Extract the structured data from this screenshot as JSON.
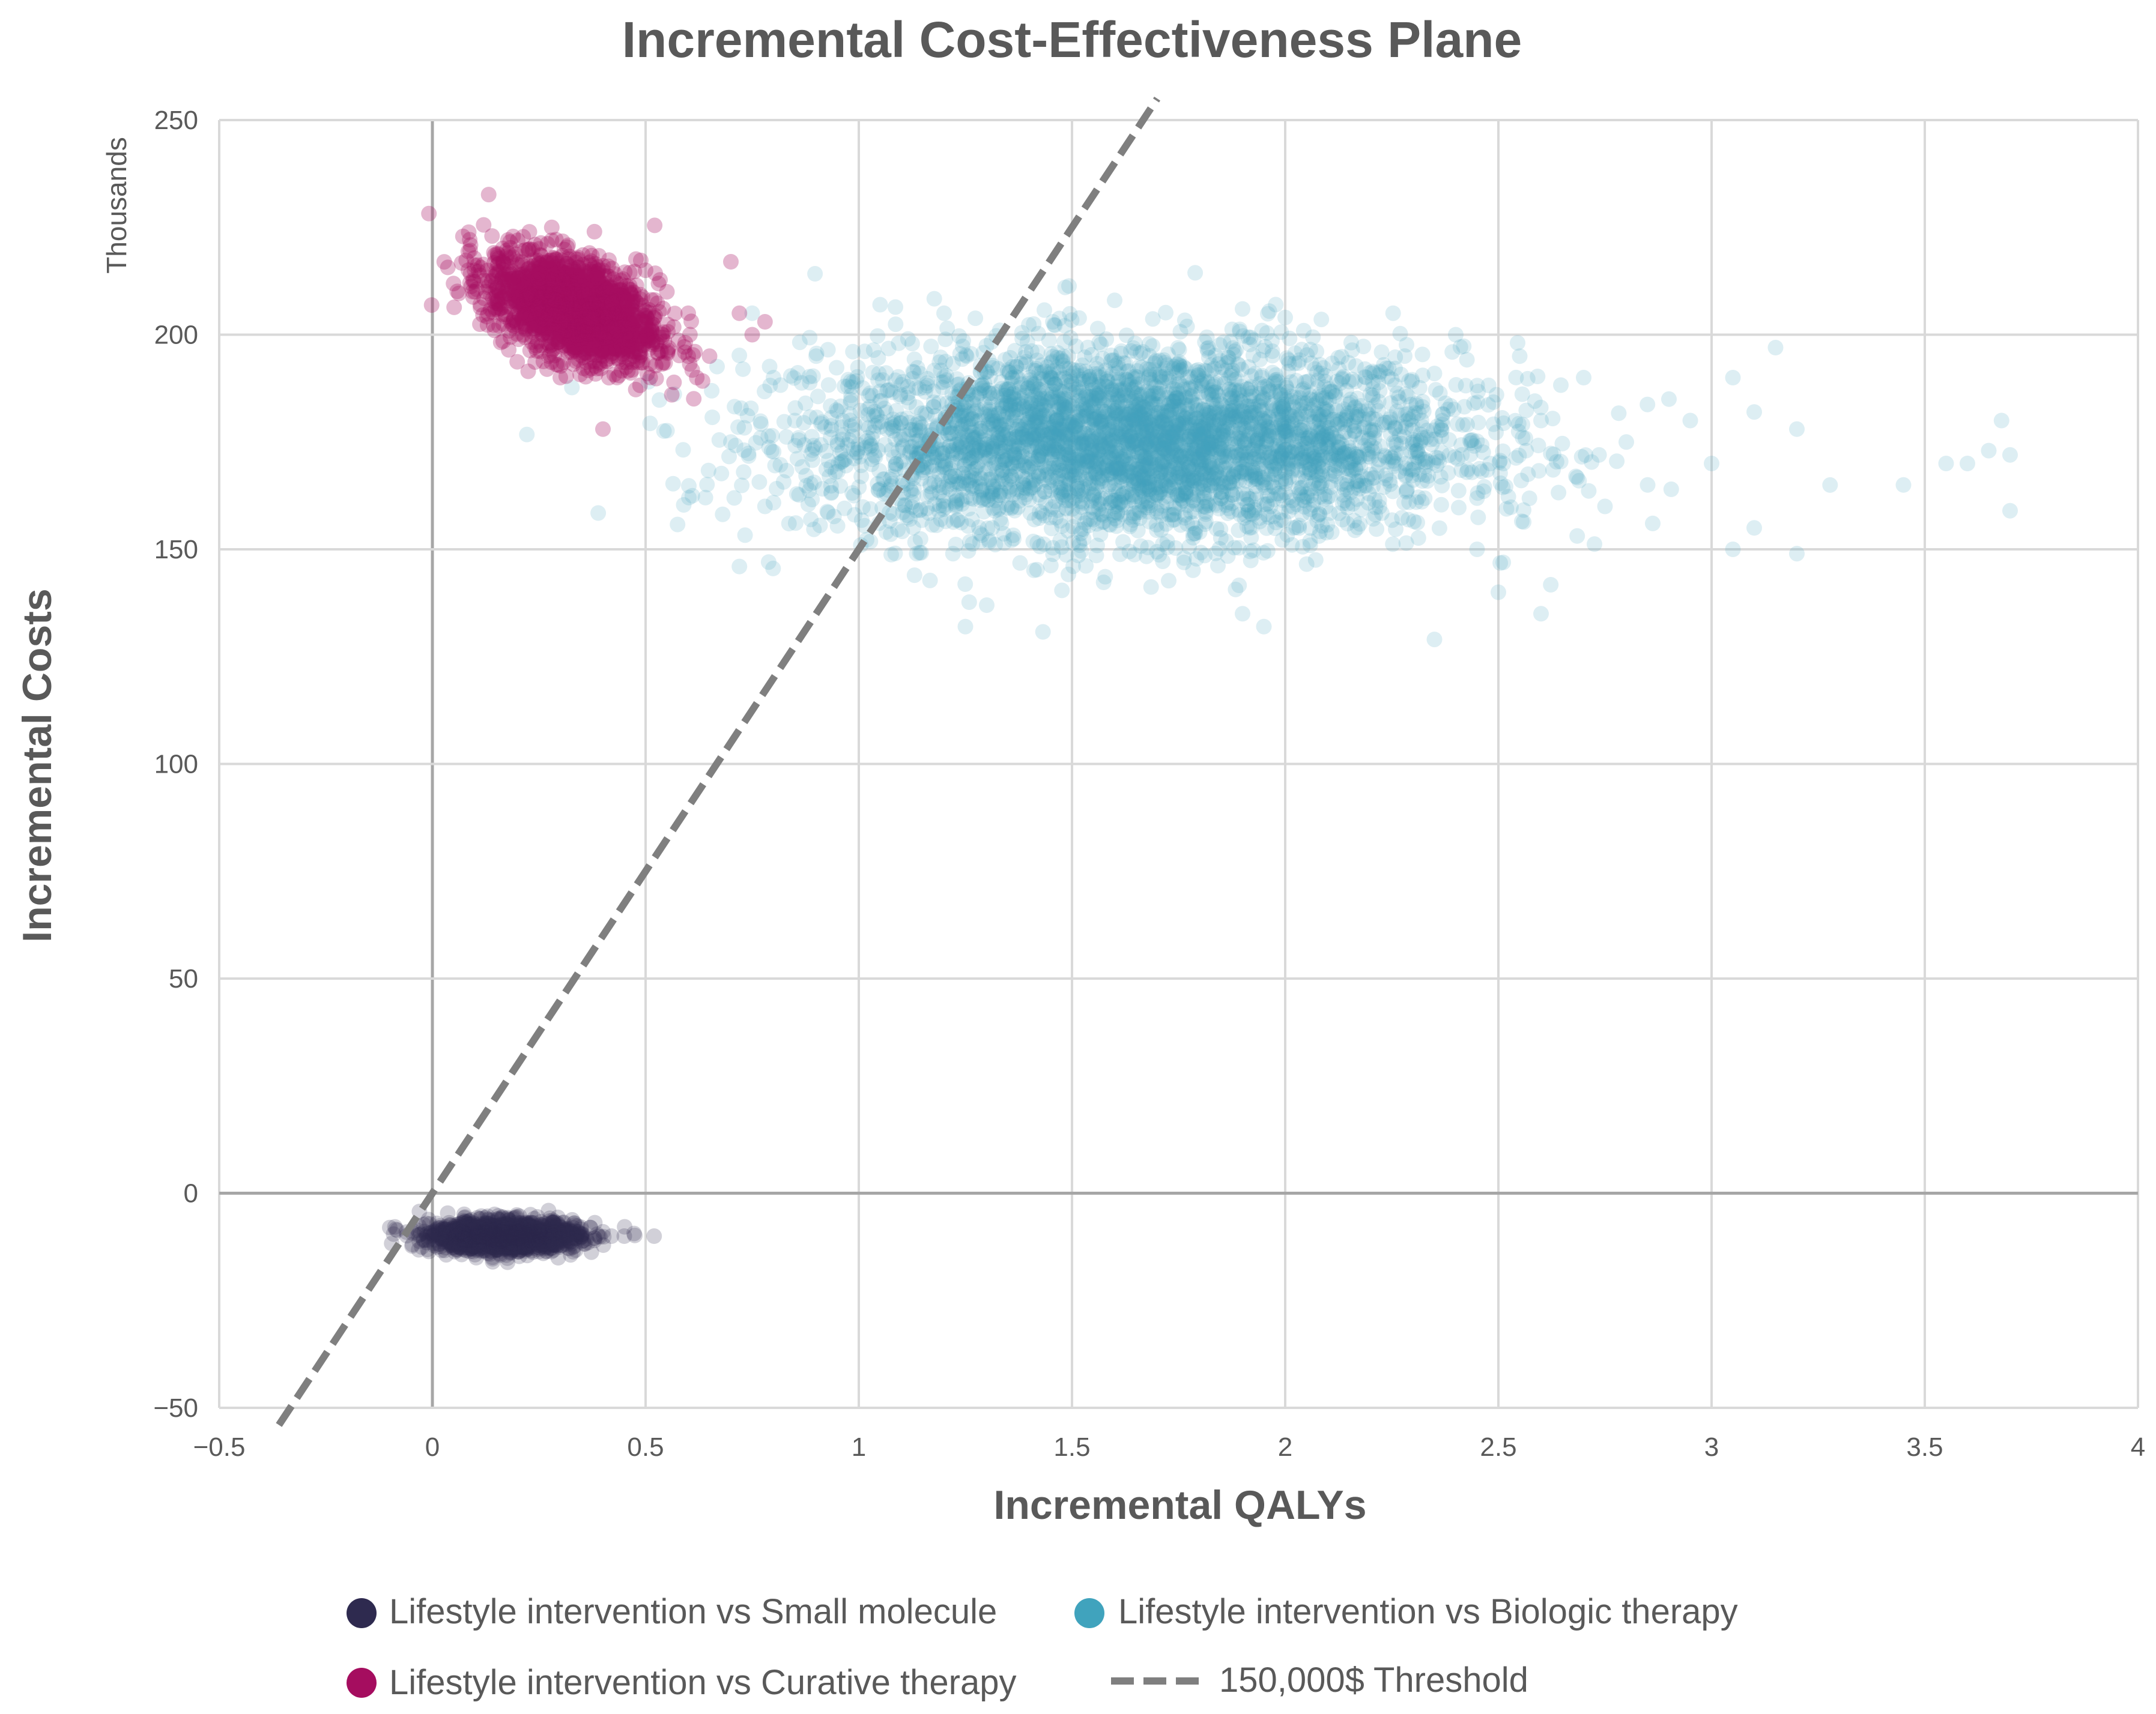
{
  "chart_data": {
    "type": "scatter",
    "title": "Incremental Cost-Effectiveness Plane",
    "xlabel": "Incremental QALYs",
    "ylabel": "Incremental Costs",
    "y_unit_label": "Thousands",
    "xlim": [
      -0.5,
      4
    ],
    "ylim": [
      -50,
      250
    ],
    "x_ticks": [
      -0.5,
      0,
      0.5,
      1,
      1.5,
      2,
      2.5,
      3,
      3.5,
      4
    ],
    "x_tick_labels": [
      "−0.5",
      "0",
      "0.5",
      "1",
      "1.5",
      "2",
      "2.5",
      "3",
      "3.5",
      "4"
    ],
    "y_ticks": [
      -50,
      0,
      50,
      100,
      150,
      200,
      250
    ],
    "y_tick_labels": [
      "−50",
      "0",
      "50",
      "100",
      "150",
      "200",
      "250"
    ],
    "grid": true,
    "legend_position": "bottom",
    "series": [
      {
        "name": "Lifestyle intervention vs Small molecule",
        "color": "#2e2a4f",
        "opacity": 0.22,
        "points": [
          [
            0.05,
            -9
          ],
          [
            0.08,
            -10
          ],
          [
            0.1,
            -8
          ],
          [
            0.12,
            -11
          ],
          [
            0.14,
            -9
          ],
          [
            0.15,
            -10
          ],
          [
            0.17,
            -8
          ],
          [
            0.18,
            -12
          ],
          [
            0.2,
            -9
          ],
          [
            0.22,
            -10
          ],
          [
            0.24,
            -8
          ],
          [
            0.25,
            -11
          ],
          [
            0.27,
            -9
          ],
          [
            0.28,
            -10
          ],
          [
            0.3,
            -8
          ],
          [
            0.32,
            -11
          ],
          [
            0.34,
            -9
          ],
          [
            0.35,
            -10
          ],
          [
            0.37,
            -8
          ],
          [
            0.38,
            -11
          ],
          [
            0.4,
            -9
          ],
          [
            0.42,
            -10
          ],
          [
            0.45,
            -10
          ],
          [
            0.52,
            -10
          ],
          [
            0.0,
            -10
          ],
          [
            0.02,
            -8
          ],
          [
            -0.02,
            -11
          ],
          [
            -0.1,
            -8
          ],
          [
            0.07,
            -13
          ],
          [
            0.13,
            -14
          ],
          [
            0.19,
            -6
          ],
          [
            0.23,
            -5
          ],
          [
            0.26,
            -14
          ],
          [
            0.11,
            -6
          ],
          [
            0.29,
            -12
          ],
          [
            0.16,
            -13
          ]
        ],
        "cluster": {
          "mean": [
            0.17,
            -10
          ],
          "sd": [
            0.085,
            1.8
          ],
          "n": 1500
        }
      },
      {
        "name": "Lifestyle intervention vs Biologic therapy",
        "color": "#40a3bd",
        "opacity": 0.18,
        "points": [
          [
            0.75,
            205
          ],
          [
            0.8,
            190
          ],
          [
            0.85,
            180
          ],
          [
            0.9,
            195
          ],
          [
            0.95,
            175
          ],
          [
            0.78,
            160
          ],
          [
            0.72,
            146
          ],
          [
            0.7,
            175
          ],
          [
            0.73,
            168
          ],
          [
            2.6,
            180
          ],
          [
            2.7,
            190
          ],
          [
            2.8,
            175
          ],
          [
            2.9,
            185
          ],
          [
            3.0,
            170
          ],
          [
            3.05,
            190
          ],
          [
            3.1,
            182
          ],
          [
            3.15,
            197
          ],
          [
            3.2,
            178
          ],
          [
            3.1,
            155
          ],
          [
            3.05,
            150
          ],
          [
            3.2,
            149
          ],
          [
            3.45,
            165
          ],
          [
            3.55,
            170
          ],
          [
            3.6,
            170
          ],
          [
            3.65,
            173
          ],
          [
            3.68,
            180
          ],
          [
            3.7,
            172
          ],
          [
            3.7,
            159
          ],
          [
            2.5,
            140
          ],
          [
            2.35,
            129
          ],
          [
            2.6,
            135
          ],
          [
            1.25,
            132
          ],
          [
            1.3,
            137
          ],
          [
            1.9,
            135
          ],
          [
            1.95,
            132
          ],
          [
            2.45,
            150
          ],
          [
            2.75,
            160
          ],
          [
            2.85,
            165
          ],
          [
            2.95,
            180
          ],
          [
            2.55,
            195
          ],
          [
            2.4,
            200
          ],
          [
            1.6,
            208
          ],
          [
            1.05,
            207
          ],
          [
            1.2,
            205
          ],
          [
            1.9,
            206
          ],
          [
            2.0,
            204
          ]
        ],
        "cluster": {
          "mean": [
            1.65,
            175
          ],
          "sd": [
            0.38,
            11
          ],
          "n": 4200
        }
      },
      {
        "name": "Lifestyle intervention vs Curative therapy",
        "color": "#a50d5f",
        "opacity": 0.3,
        "points": [
          [
            0.1,
            210
          ],
          [
            0.15,
            215
          ],
          [
            0.2,
            205
          ],
          [
            0.25,
            220
          ],
          [
            0.3,
            200
          ],
          [
            0.35,
            210
          ],
          [
            0.4,
            195
          ],
          [
            0.45,
            205
          ],
          [
            0.5,
            200
          ],
          [
            0.55,
            210
          ],
          [
            0.6,
            205
          ],
          [
            0.65,
            195
          ],
          [
            0.7,
            217
          ],
          [
            0.72,
            205
          ],
          [
            0.75,
            200
          ],
          [
            0.78,
            203
          ],
          [
            0.4,
            178
          ],
          [
            0.3,
            190
          ],
          [
            0.2,
            222
          ],
          [
            0.28,
            225
          ],
          [
            0.38,
            224
          ],
          [
            0.5,
            215
          ],
          [
            0.6,
            195
          ],
          [
            0.62,
            190
          ]
        ],
        "cluster": {
          "mean": [
            0.33,
            206
          ],
          "sd": [
            0.1,
            6.5
          ],
          "n": 1700
        }
      }
    ],
    "threshold_line": {
      "name": "150,000$ Threshold",
      "color": "#7f7f7f",
      "slope": 150,
      "x_range": [
        -0.36,
        1.7
      ]
    }
  }
}
